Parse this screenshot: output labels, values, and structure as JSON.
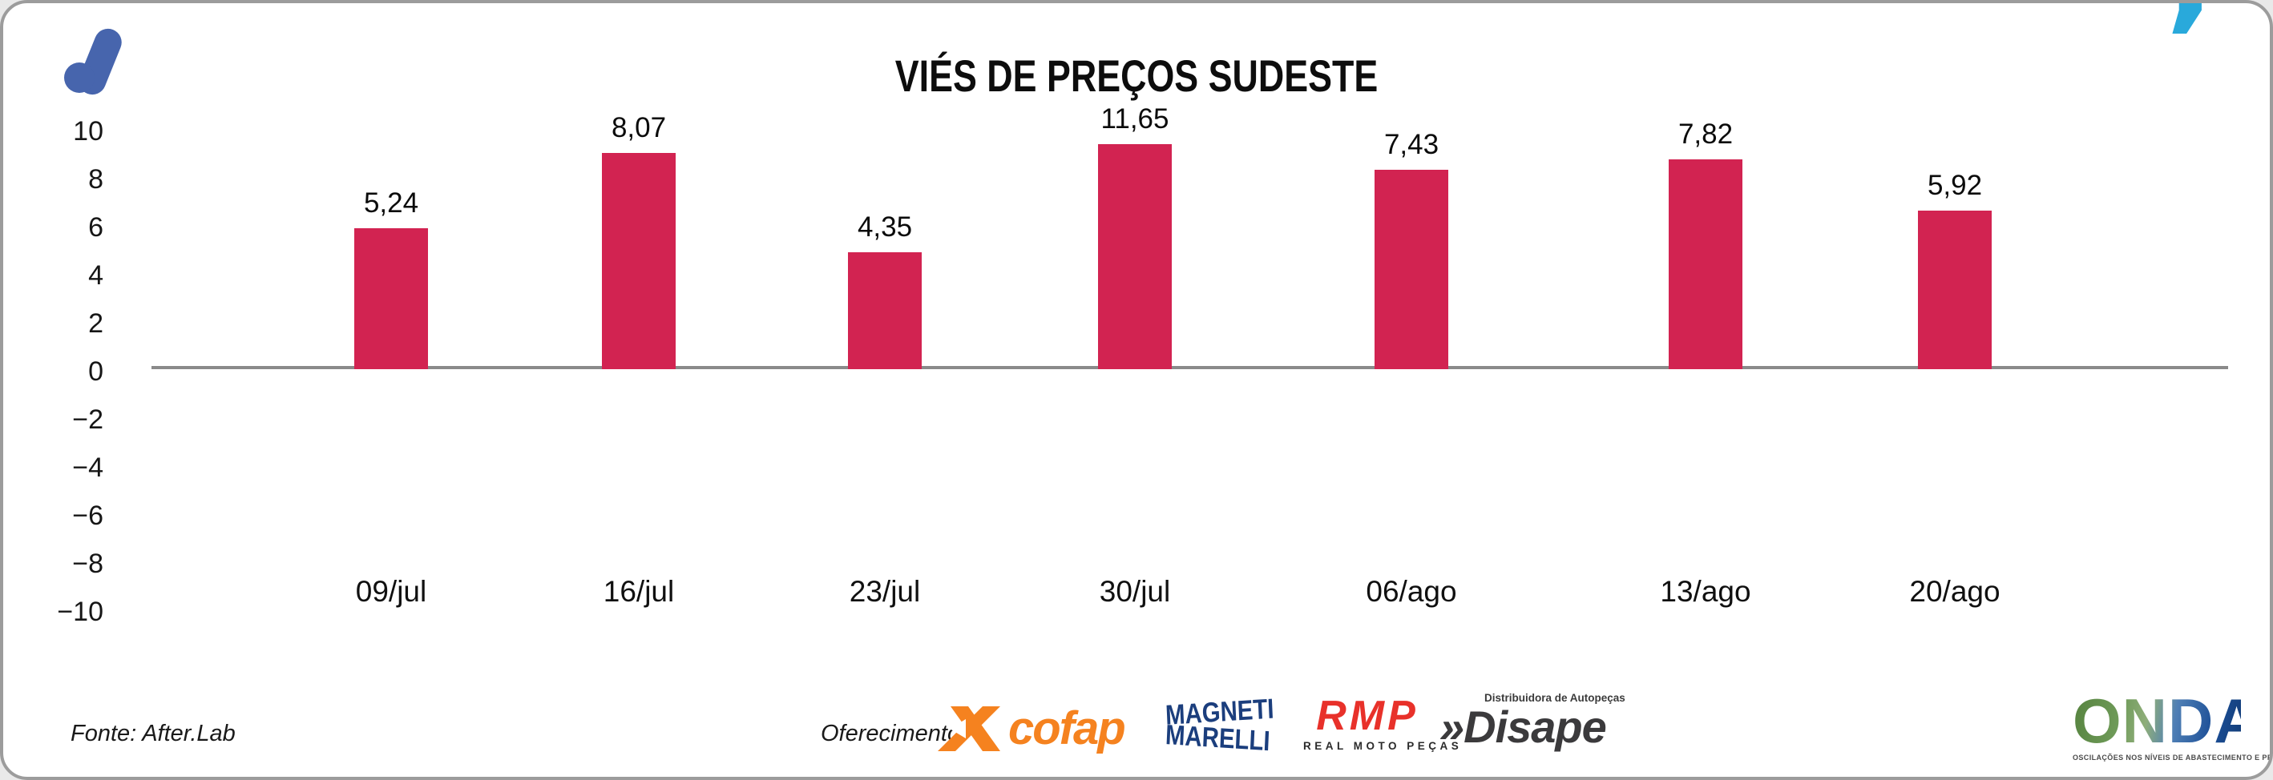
{
  "header": {
    "title": "VIÉS DE PREÇOS SUDESTE",
    "quote_glyph": "’"
  },
  "chart_data": {
    "type": "bar",
    "title": "VIÉS DE PREÇOS SUDESTE",
    "categories": [
      "09/jul",
      "16/jul",
      "23/jul",
      "30/jul",
      "06/ago",
      "13/ago",
      "20/ago"
    ],
    "values": [
      5.24,
      8.07,
      4.35,
      11.65,
      7.43,
      7.82,
      5.92
    ],
    "value_labels": [
      "5,24",
      "8,07",
      "4,35",
      "11,65",
      "7,43",
      "7,82",
      "5,92"
    ],
    "y_ticks": [
      10,
      8,
      6,
      4,
      2,
      0,
      -2,
      -4,
      -6,
      -8,
      -10
    ],
    "y_tick_labels": [
      "10",
      "8",
      "6",
      "4",
      "2",
      "0",
      "−2",
      "−4",
      "−6",
      "−8",
      "−10"
    ],
    "ylim": [
      -10,
      10
    ],
    "xlabel": "",
    "ylabel": "",
    "grid": false,
    "legend": false,
    "bar_color": "#d22351",
    "axis_color": "#8a8a8a"
  },
  "footer": {
    "source": "Fonte: After.Lab",
    "sponsor_label": "Oferecimento:",
    "sponsors": {
      "cofap": {
        "name": "cofap",
        "color": "#f5821f"
      },
      "magneti_marelli": {
        "line1": "MAGNETI",
        "line2": "MARELLI",
        "color": "#1b3e7d"
      },
      "rmp": {
        "name": "RMP",
        "subtitle": "REAL MOTO PEÇAS",
        "color": "#e8312a"
      },
      "disape": {
        "name": "»Disape",
        "subtitle": "Distribuidora de Autopeças",
        "color": "#3b3a3c"
      }
    },
    "onda": {
      "name": "ONDA",
      "tagline": "OSCILAÇÕES NOS NÍVEIS DE ABASTECIMENTO E PREÇO"
    }
  },
  "branding": {
    "logo_color": "#4765ad",
    "quote_color": "#29a9db"
  }
}
